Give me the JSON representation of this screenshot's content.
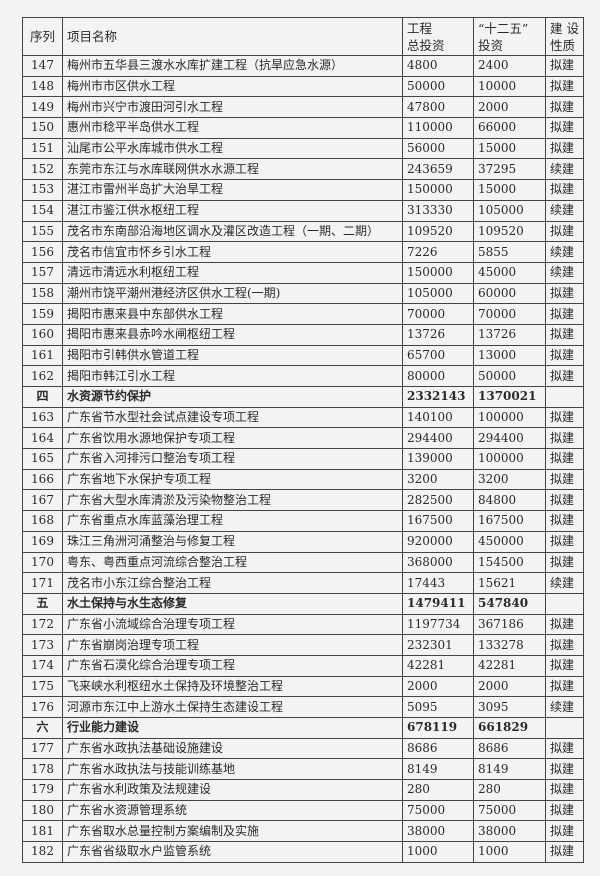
{
  "header": {
    "seq": "序列",
    "name": "项目名称",
    "total_line1": "工程",
    "total_line2": "总投资",
    "plan_line1": "“十二五”",
    "plan_line2": "投资",
    "nature_line1": "建 设",
    "nature_line2": "性质"
  },
  "rows": [
    {
      "seq": "147",
      "name": "梅州市五华县三渡水水库扩建工程（抗旱应急水源）",
      "total": "4800",
      "plan": "2400",
      "nature": "拟建"
    },
    {
      "seq": "148",
      "name": "梅州市市区供水工程",
      "total": "50000",
      "plan": "10000",
      "nature": "拟建"
    },
    {
      "seq": "149",
      "name": "梅州市兴宁市渡田河引水工程",
      "total": "47800",
      "plan": "2000",
      "nature": "拟建"
    },
    {
      "seq": "150",
      "name": "惠州市稔平半岛供水工程",
      "total": "110000",
      "plan": "66000",
      "nature": "拟建"
    },
    {
      "seq": "151",
      "name": "汕尾市公平水库城市供水工程",
      "total": "56000",
      "plan": "15000",
      "nature": "拟建"
    },
    {
      "seq": "152",
      "name": "东莞市东江与水库联网供水水源工程",
      "total": "243659",
      "plan": "37295",
      "nature": "续建"
    },
    {
      "seq": "153",
      "name": "湛江市雷州半岛扩大治旱工程",
      "total": "150000",
      "plan": "15000",
      "nature": "拟建"
    },
    {
      "seq": "154",
      "name": "湛江市鉴江供水枢纽工程",
      "total": "313330",
      "plan": "105000",
      "nature": "续建"
    },
    {
      "seq": "155",
      "name": "茂名市东南部沿海地区调水及灌区改造工程（一期、二期）",
      "total": "109520",
      "plan": "109520",
      "nature": "拟建"
    },
    {
      "seq": "156",
      "name": "茂名市信宜市怀乡引水工程",
      "total": "7226",
      "plan": "5855",
      "nature": "续建"
    },
    {
      "seq": "157",
      "name": "清远市清远水利枢纽工程",
      "total": "150000",
      "plan": "45000",
      "nature": "续建"
    },
    {
      "seq": "158",
      "name": "潮州市饶平潮州港经济区供水工程(一期)",
      "total": "105000",
      "plan": "60000",
      "nature": "拟建"
    },
    {
      "seq": "159",
      "name": "揭阳市惠来县中东部供水工程",
      "total": "70000",
      "plan": "70000",
      "nature": "拟建"
    },
    {
      "seq": "160",
      "name": "揭阳市惠来县赤吟水闸枢纽工程",
      "total": "13726",
      "plan": "13726",
      "nature": "拟建"
    },
    {
      "seq": "161",
      "name": "揭阳市引韩供水管道工程",
      "total": "65700",
      "plan": "13000",
      "nature": "拟建"
    },
    {
      "seq": "162",
      "name": "揭阳市韩江引水工程",
      "total": "80000",
      "plan": "50000",
      "nature": "拟建"
    },
    {
      "seq": "四",
      "name": "水资源节约保护",
      "total": "2332143",
      "plan": "1370021",
      "nature": "",
      "section": true
    },
    {
      "seq": "163",
      "name": "广东省节水型社会试点建设专项工程",
      "total": "140100",
      "plan": "100000",
      "nature": "拟建"
    },
    {
      "seq": "164",
      "name": "广东省饮用水源地保护专项工程",
      "total": "294400",
      "plan": "294400",
      "nature": "拟建"
    },
    {
      "seq": "165",
      "name": "广东省入河排污口整治专项工程",
      "total": "139000",
      "plan": "100000",
      "nature": "拟建"
    },
    {
      "seq": "166",
      "name": "广东省地下水保护专项工程",
      "total": "3200",
      "plan": "3200",
      "nature": "拟建"
    },
    {
      "seq": "167",
      "name": "广东省大型水库清淤及污染物整治工程",
      "total": "282500",
      "plan": "84800",
      "nature": "拟建"
    },
    {
      "seq": "168",
      "name": "广东省重点水库蓝藻治理工程",
      "total": "167500",
      "plan": "167500",
      "nature": "拟建"
    },
    {
      "seq": "169",
      "name": "珠江三角洲河涌整治与修复工程",
      "total": "920000",
      "plan": "450000",
      "nature": "拟建"
    },
    {
      "seq": "170",
      "name": "粤东、粤西重点河流综合整治工程",
      "total": "368000",
      "plan": "154500",
      "nature": "拟建"
    },
    {
      "seq": "171",
      "name": "茂名市小东江综合整治工程",
      "total": "17443",
      "plan": "15621",
      "nature": "续建"
    },
    {
      "seq": "五",
      "name": "水土保持与水生态修复",
      "total": "1479411",
      "plan": "547840",
      "nature": "",
      "section": true
    },
    {
      "seq": "172",
      "name": "广东省小流域综合治理专项工程",
      "total": "1197734",
      "plan": "367186",
      "nature": "拟建"
    },
    {
      "seq": "173",
      "name": "广东省崩岗治理专项工程",
      "total": "232301",
      "plan": "133278",
      "nature": "拟建"
    },
    {
      "seq": "174",
      "name": "广东省石漠化综合治理专项工程",
      "total": "42281",
      "plan": "42281",
      "nature": "拟建"
    },
    {
      "seq": "175",
      "name": "飞来峡水利枢纽水土保持及环境整治工程",
      "total": "2000",
      "plan": "2000",
      "nature": "拟建"
    },
    {
      "seq": "176",
      "name": "河源市东江中上游水土保持生态建设工程",
      "total": "5095",
      "plan": "3095",
      "nature": "续建"
    },
    {
      "seq": "六",
      "name": "行业能力建设",
      "total": "678119",
      "plan": "661829",
      "nature": "",
      "section": true
    },
    {
      "seq": "177",
      "name": "广东省水政执法基础设施建设",
      "total": "8686",
      "plan": "8686",
      "nature": "拟建"
    },
    {
      "seq": "178",
      "name": "广东省水政执法与技能训练基地",
      "total": "8149",
      "plan": "8149",
      "nature": "拟建"
    },
    {
      "seq": "179",
      "name": "广东省水利政策及法规建设",
      "total": "280",
      "plan": "280",
      "nature": "拟建"
    },
    {
      "seq": "180",
      "name": "广东省水资源管理系统",
      "total": "75000",
      "plan": "75000",
      "nature": "拟建"
    },
    {
      "seq": "181",
      "name": "广东省取水总量控制方案编制及实施",
      "total": "38000",
      "plan": "38000",
      "nature": "拟建"
    },
    {
      "seq": "182",
      "name": "广东省省级取水户监管系统",
      "total": "1000",
      "plan": "1000",
      "nature": "拟建"
    }
  ]
}
